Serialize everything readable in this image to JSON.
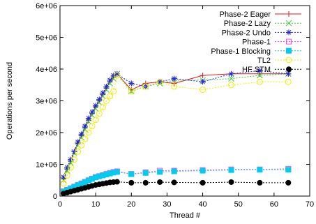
{
  "chart_data": {
    "type": "line",
    "title": "",
    "xlabel": "Thread #",
    "ylabel": "Operations per second",
    "xlim": [
      0,
      70
    ],
    "ylim": [
      0,
      6000000
    ],
    "xticks": [
      0,
      10,
      20,
      30,
      40,
      50,
      60,
      70
    ],
    "yticks": [
      0,
      1000000,
      2000000,
      3000000,
      4000000,
      5000000,
      6000000
    ],
    "xtick_labels": [
      "0",
      "10",
      "20",
      "30",
      "40",
      "50",
      "60",
      "70"
    ],
    "ytick_labels": [
      "0",
      "1e+06",
      "2e+06",
      "3e+06",
      "4e+06",
      "5e+06",
      "6e+06"
    ],
    "grid": false,
    "legend_position": "top-right",
    "series": [
      {
        "name": "Phase-2 Eager",
        "color": "#e41a1c",
        "marker": "plus",
        "dashed": false,
        "x": [
          1,
          2,
          3,
          4,
          5,
          6,
          7,
          8,
          9,
          10,
          11,
          12,
          13,
          14,
          15,
          16,
          20,
          24,
          28,
          32,
          40,
          48,
          56,
          64
        ],
        "y": [
          550000,
          850000,
          1100000,
          1400000,
          1650000,
          1900000,
          2150000,
          2380000,
          2600000,
          2820000,
          3000000,
          3200000,
          3400000,
          3600000,
          3750000,
          3850000,
          3350000,
          3550000,
          3600000,
          3550000,
          3800000,
          3850000,
          3850000,
          3850000
        ]
      },
      {
        "name": "Phase-2 Lazy",
        "color": "#33cc33",
        "marker": "cross",
        "dashed": true,
        "x": [
          1,
          2,
          3,
          4,
          5,
          6,
          7,
          8,
          9,
          10,
          11,
          12,
          13,
          14,
          15,
          16,
          20,
          24,
          28,
          32,
          40,
          48,
          56,
          64
        ],
        "y": [
          500000,
          800000,
          1050000,
          1350000,
          1600000,
          1850000,
          2100000,
          2350000,
          2550000,
          2750000,
          2950000,
          3150000,
          3350000,
          3550000,
          3700000,
          3850000,
          3300000,
          3450000,
          3550000,
          3650000,
          3650000,
          3700000,
          3800000,
          3850000
        ]
      },
      {
        "name": "Phase-2 Undo",
        "color": "#2222dd",
        "marker": "star",
        "dashed": true,
        "x": [
          1,
          2,
          3,
          4,
          5,
          6,
          7,
          8,
          9,
          10,
          11,
          12,
          13,
          14,
          15,
          16,
          20,
          24,
          28,
          32,
          40,
          48,
          56,
          64
        ],
        "y": [
          600000,
          900000,
          1150000,
          1400000,
          1700000,
          1950000,
          2200000,
          2450000,
          2650000,
          2850000,
          3050000,
          3250000,
          3450000,
          3650000,
          3800000,
          3850000,
          3550000,
          3450000,
          3600000,
          3700000,
          3600000,
          3850000,
          3950000,
          3850000
        ]
      },
      {
        "name": "Phase-1",
        "color": "#ff44ff",
        "marker": "square-open",
        "dashed": true,
        "x": [
          1,
          2,
          3,
          4,
          5,
          6,
          7,
          8,
          9,
          10,
          11,
          12,
          13,
          14,
          15,
          16,
          20,
          24,
          28,
          32,
          40,
          48,
          56,
          64
        ],
        "y": [
          150000,
          200000,
          250000,
          300000,
          350000,
          400000,
          450000,
          500000,
          550000,
          600000,
          630000,
          660000,
          700000,
          730000,
          760000,
          780000,
          700000,
          750000,
          800000,
          800000,
          820000,
          840000,
          840000,
          860000
        ]
      },
      {
        "name": "Phase-1 Blocking",
        "color": "#00ccee",
        "marker": "square-filled",
        "dashed": true,
        "x": [
          1,
          2,
          3,
          4,
          5,
          6,
          7,
          8,
          9,
          10,
          11,
          12,
          13,
          14,
          15,
          16,
          20,
          24,
          28,
          32,
          40,
          48,
          56,
          64
        ],
        "y": [
          140000,
          190000,
          240000,
          290000,
          340000,
          390000,
          440000,
          490000,
          540000,
          590000,
          620000,
          650000,
          680000,
          710000,
          740000,
          760000,
          690000,
          730000,
          760000,
          780000,
          800000,
          820000,
          830000,
          830000
        ]
      },
      {
        "name": "TL2",
        "color": "#eeee00",
        "marker": "circle-open",
        "dashed": true,
        "x": [
          1,
          2,
          3,
          4,
          5,
          6,
          7,
          8,
          9,
          10,
          11,
          12,
          13,
          14,
          15,
          16,
          20,
          24,
          28,
          32,
          40,
          48,
          56,
          64
        ],
        "y": [
          400000,
          650000,
          900000,
          1150000,
          1400000,
          1600000,
          1800000,
          2000000,
          2200000,
          2400000,
          2600000,
          2800000,
          3000000,
          3150000,
          3300000,
          3800000,
          3300000,
          3450000,
          3600000,
          3450000,
          3350000,
          3500000,
          3600000,
          3600000
        ]
      },
      {
        "name": "HF STM",
        "color": "#000000",
        "marker": "circle-filled",
        "dashed": true,
        "x": [
          1,
          2,
          3,
          4,
          5,
          6,
          7,
          8,
          9,
          10,
          11,
          12,
          13,
          14,
          15,
          16,
          20,
          24,
          28,
          32,
          40,
          48,
          56,
          64
        ],
        "y": [
          80000,
          110000,
          140000,
          170000,
          200000,
          230000,
          260000,
          290000,
          320000,
          350000,
          370000,
          390000,
          410000,
          430000,
          440000,
          450000,
          420000,
          420000,
          440000,
          430000,
          420000,
          440000,
          420000,
          420000
        ]
      }
    ]
  }
}
